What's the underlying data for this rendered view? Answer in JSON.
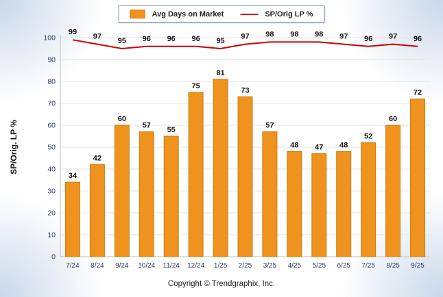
{
  "chart_data": {
    "type": "bar",
    "categories": [
      "7/24",
      "8/24",
      "9/24",
      "10/24",
      "11/24",
      "12/24",
      "1/25",
      "2/25",
      "3/25",
      "4/25",
      "5/25",
      "6/25",
      "7/25",
      "8/25",
      "9/25"
    ],
    "series": [
      {
        "name": "Avg Days on Market",
        "type": "bar",
        "color": "#F0921E",
        "border_color": "#C97C10",
        "values": [
          34,
          42,
          60,
          57,
          55,
          75,
          81,
          73,
          57,
          48,
          47,
          48,
          52,
          60,
          72
        ]
      },
      {
        "name": "SP/Orig LP %",
        "type": "line",
        "color": "#CC0000",
        "values": [
          99,
          97,
          95,
          96,
          96,
          96,
          95,
          97,
          98,
          98,
          98,
          97,
          96,
          97,
          96
        ]
      }
    ],
    "title": "",
    "xlabel": "",
    "ylabel": "SP/Orig. LP %",
    "ylim": [
      0,
      100
    ],
    "yticks": [
      0,
      10,
      20,
      30,
      40,
      50,
      60,
      70,
      80,
      90,
      100
    ],
    "grid": true,
    "legend_position": "top"
  },
  "legend": {
    "bar_label": "Avg Days on Market",
    "line_label": "SP/Orig LP %"
  },
  "footer": {
    "copyright": "Copyright © Trendgraphix, Inc."
  },
  "colors": {
    "bar_fill": "#F0921E",
    "bar_border": "#C97C10",
    "line": "#CC0000",
    "grid_line": "#e3e3e3",
    "axis_line": "#bdbdbd",
    "tick_label": "#2b3a66",
    "value_label": "#111111"
  }
}
